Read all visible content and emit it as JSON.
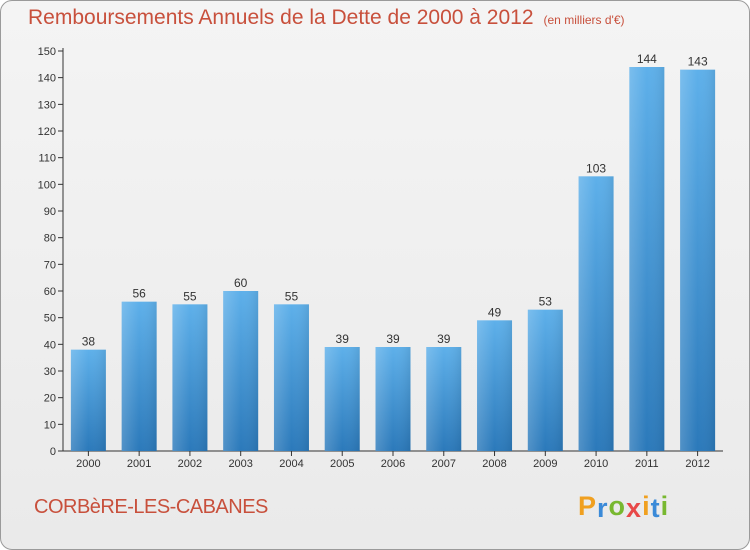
{
  "title": "Remboursements Annuels de la Dette de 2000 à 2012",
  "subtitle": "(en milliers d'€)",
  "commune": "CORBèRE-LES-CABANES",
  "brand": {
    "letters": [
      "P",
      "r",
      "o",
      "x",
      "i",
      "t",
      "i"
    ],
    "colors": [
      "#f0a020",
      "#3a8ad8",
      "#78b830",
      "#e84848",
      "#f0a020",
      "#3a8ad8",
      "#78b830"
    ]
  },
  "colors": {
    "bar_top": "#5eb0ea",
    "bar_bottom": "#2b79ba",
    "title": "#c8503c"
  },
  "chart_data": {
    "type": "bar",
    "categories": [
      "2000",
      "2001",
      "2002",
      "2003",
      "2004",
      "2005",
      "2006",
      "2007",
      "2008",
      "2009",
      "2010",
      "2011",
      "2012"
    ],
    "values": [
      38,
      56,
      55,
      60,
      55,
      39,
      39,
      39,
      49,
      53,
      103,
      144,
      143
    ],
    "ylim": [
      0,
      150
    ],
    "yticks": [
      0,
      10,
      20,
      30,
      40,
      50,
      60,
      70,
      80,
      90,
      100,
      110,
      120,
      130,
      140,
      150
    ],
    "grid": false,
    "xlabel": "",
    "ylabel": ""
  }
}
